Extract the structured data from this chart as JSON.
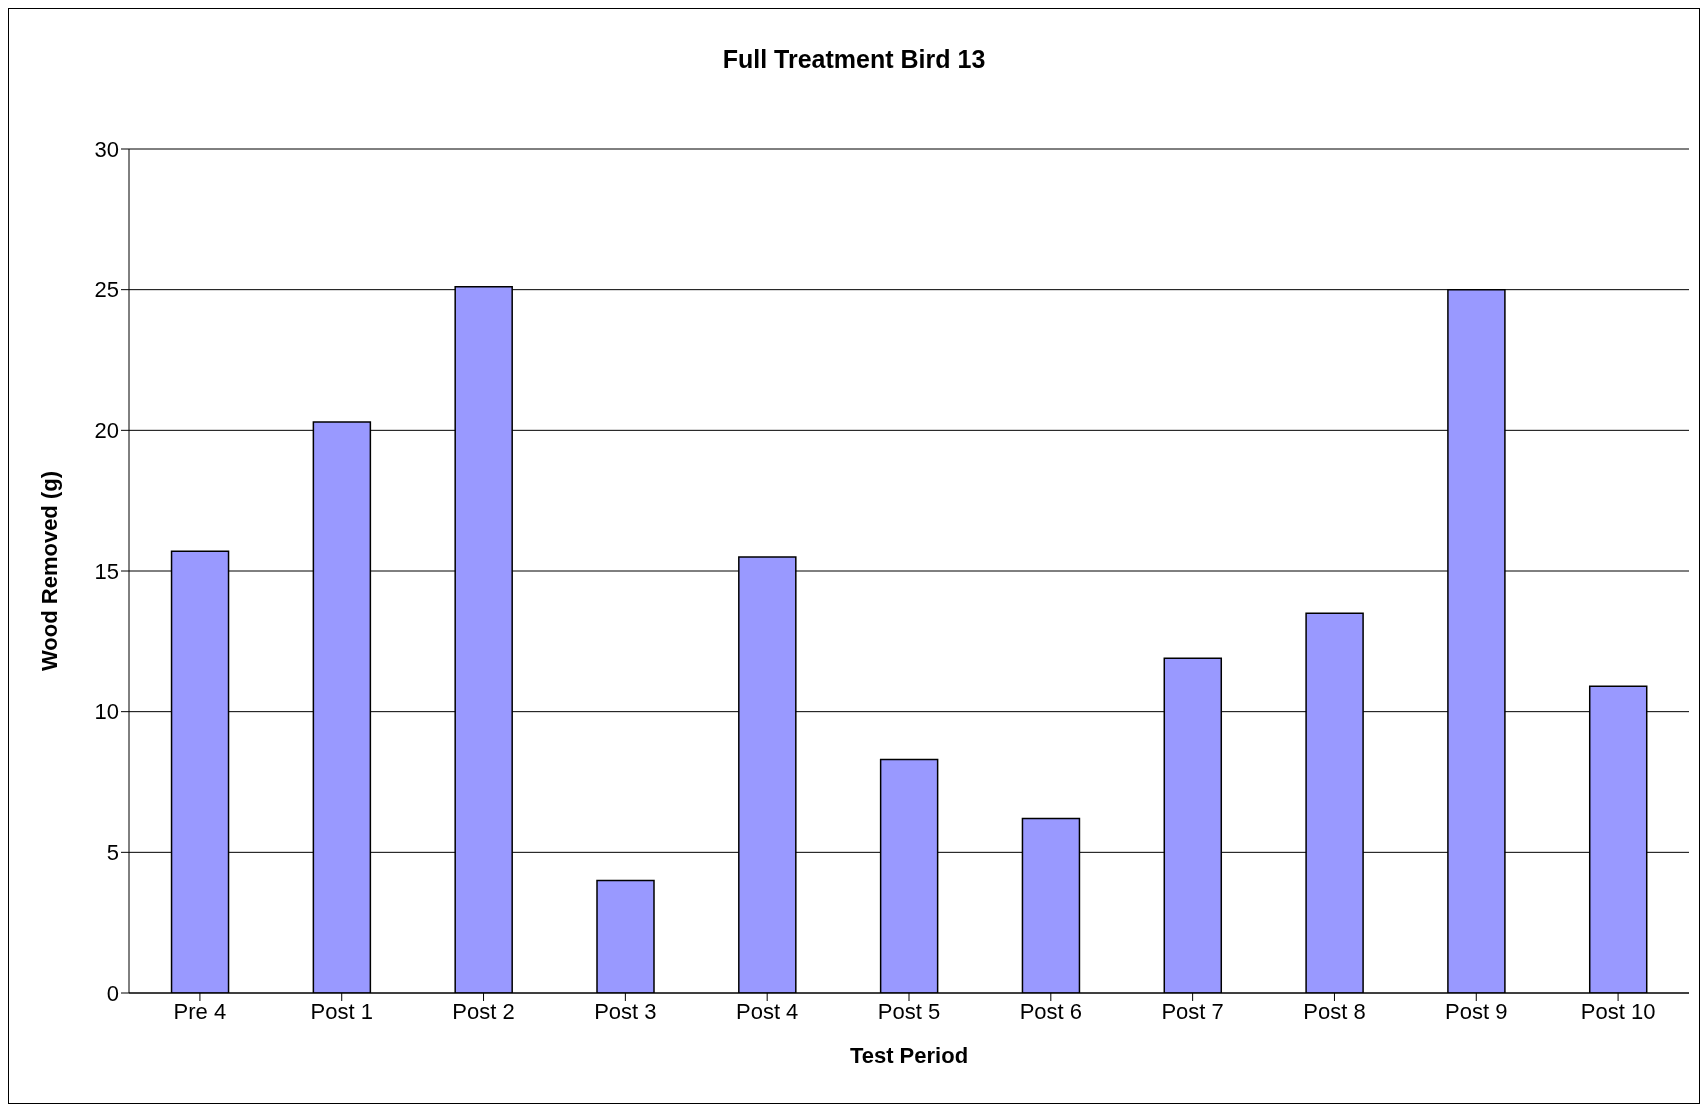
{
  "chart_data": {
    "type": "bar",
    "title": "Full Treatment Bird 13",
    "xlabel": "Test Period",
    "ylabel": "Wood Removed (g)",
    "categories": [
      "Pre 4",
      "Post 1",
      "Post 2",
      "Post 3",
      "Post 4",
      "Post 5",
      "Post 6",
      "Post 7",
      "Post 8",
      "Post 9",
      "Post 10"
    ],
    "values": [
      15.7,
      20.3,
      25.1,
      4.0,
      15.5,
      8.3,
      6.2,
      11.9,
      13.5,
      25.0,
      10.9
    ],
    "color": "#9999ff",
    "ylim": [
      0,
      30
    ],
    "yticks": [
      0,
      5,
      10,
      15,
      20,
      25,
      30
    ],
    "grid": "y"
  }
}
